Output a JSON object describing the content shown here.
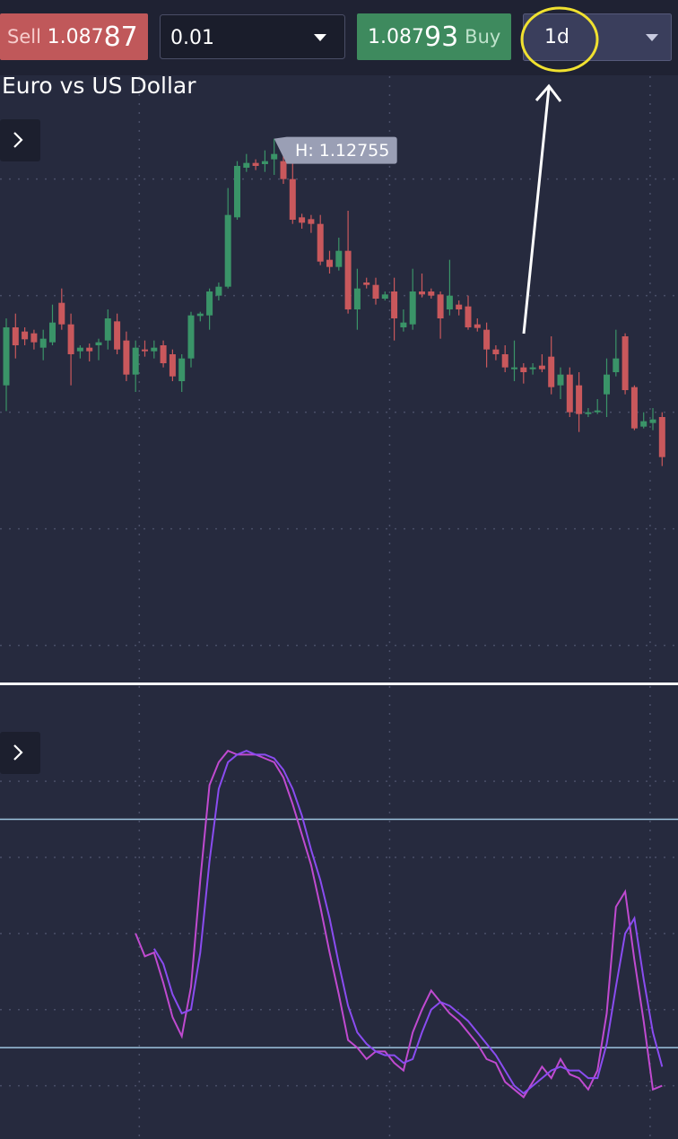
{
  "toolbar": {
    "sell": {
      "label": "Sell",
      "price": "1.087",
      "pips": "87"
    },
    "quantity": "0.01",
    "buy": {
      "price": "1.087",
      "pips": "93",
      "label": "Buy"
    },
    "timeframe": "1d"
  },
  "chart_data": [
    {
      "type": "candlestick",
      "title": "Euro vs US Dollar",
      "annotation": "H: 1.12755",
      "open": [
        1.0863,
        1.096,
        1.0953,
        1.095,
        1.0926,
        1.0935,
        1.1001,
        1.0965,
        1.092,
        1.0926,
        1.093,
        1.0938,
        1.097,
        1.0938,
        1.0881,
        1.0923,
        1.092,
        1.093,
        1.0915,
        1.087,
        1.0908,
        1.0979,
        1.098,
        1.1013,
        1.1028,
        1.1144,
        1.1227,
        1.1235,
        1.1233,
        1.1241,
        1.1238,
        1.1208,
        1.1144,
        1.1141,
        1.1133,
        1.1073,
        1.1061,
        1.1088,
        1.099,
        1.1035,
        1.1031,
        1.1008,
        1.102,
        1.096,
        1.0965,
        1.102,
        1.102,
        1.1015,
        1.099,
        1.0998,
        1.0995,
        1.0965,
        1.0956,
        1.0923,
        1.0915,
        1.089,
        1.0893,
        1.089,
        1.0896,
        1.0911,
        1.0863,
        1.0881,
        1.0863,
        1.0815,
        1.0818,
        1.0848,
        1.0885,
        1.0945,
        1.086,
        1.0794,
        1.08,
        1.081
      ],
      "high": [
        1.0975,
        1.0983,
        1.096,
        1.0956,
        1.0956,
        1.0998,
        1.1025,
        1.0983,
        1.093,
        1.0933,
        1.0941,
        1.099,
        1.0983,
        1.0953,
        1.0938,
        1.0938,
        1.0938,
        1.0938,
        1.0923,
        1.0915,
        1.0986,
        1.0986,
        1.1025,
        1.1035,
        1.1193,
        1.1238,
        1.125,
        1.1241,
        1.1256,
        1.12755,
        1.1265,
        1.1245,
        1.115,
        1.1148,
        1.1148,
        1.1088,
        1.111,
        1.1155,
        1.1058,
        1.1043,
        1.1043,
        1.102,
        1.1043,
        1.099,
        1.1058,
        1.105,
        1.1025,
        1.102,
        1.1073,
        1.1005,
        1.1013,
        1.0975,
        1.0968,
        1.093,
        1.093,
        1.0938,
        1.09,
        1.09,
        1.0915,
        1.0945,
        1.0893,
        1.0893,
        1.0885,
        1.0825,
        1.084,
        1.0908,
        1.0956,
        1.095,
        1.0863,
        1.0818,
        1.0825,
        1.0818
      ],
      "low": [
        1.082,
        1.0908,
        1.093,
        1.0923,
        1.0905,
        1.093,
        1.0956,
        1.0863,
        1.0908,
        1.0903,
        1.0905,
        1.0923,
        1.0915,
        1.087,
        1.0852,
        1.0911,
        1.0908,
        1.0893,
        1.087,
        1.0852,
        1.0893,
        1.097,
        1.0956,
        1.1005,
        1.1025,
        1.114,
        1.122,
        1.1223,
        1.122,
        1.1215,
        1.12,
        1.1133,
        1.1125,
        1.1118,
        1.1064,
        1.105,
        1.1055,
        1.0983,
        1.0956,
        1.1025,
        1.0998,
        1.1005,
        1.0938,
        1.0953,
        1.0956,
        1.101,
        1.1008,
        1.0941,
        1.098,
        1.098,
        1.0956,
        1.0953,
        1.0893,
        1.0905,
        1.0885,
        1.087,
        1.0866,
        1.0881,
        1.0885,
        1.0848,
        1.084,
        1.081,
        1.0785,
        1.081,
        1.0815,
        1.081,
        1.0878,
        1.0848,
        1.0788,
        1.0791,
        1.0788,
        1.0728
      ],
      "close": [
        1.096,
        1.093,
        1.094,
        1.0935,
        1.0941,
        1.0968,
        1.0965,
        1.0915,
        1.0926,
        1.092,
        1.0935,
        1.0975,
        1.0923,
        1.0881,
        1.0926,
        1.092,
        1.0926,
        1.09,
        1.0878,
        1.0908,
        1.098,
        1.0983,
        1.102,
        1.1028,
        1.1148,
        1.123,
        1.1235,
        1.123,
        1.1238,
        1.125,
        1.1208,
        1.114,
        1.1135,
        1.1133,
        1.107,
        1.1061,
        1.1088,
        1.099,
        1.1025,
        1.1031,
        1.1008,
        1.1015,
        1.0975,
        1.0968,
        1.102,
        1.1015,
        1.1013,
        1.0975,
        1.1013,
        1.099,
        1.096,
        1.0959,
        1.0923,
        1.0915,
        1.0893,
        1.0893,
        1.0885,
        1.0893,
        1.089,
        1.086,
        1.0881,
        1.0818,
        1.0815,
        1.0818,
        1.0821,
        1.0881,
        1.0908,
        1.0855,
        1.0791,
        1.0803,
        1.0806,
        1.0743
      ],
      "up_color": "#3a9468",
      "down_color": "#c9585c",
      "ylim": [
        1.03675,
        1.138
      ],
      "grid_y": [
        1.1208,
        1.1013,
        1.0818,
        1.0623,
        1.0428
      ],
      "grid_x": [
        14.4,
        41.5,
        69.7
      ]
    },
    {
      "type": "line",
      "series": [
        {
          "color": "#c04ad0",
          "values": [
            null,
            null,
            null,
            null,
            null,
            null,
            null,
            null,
            null,
            null,
            null,
            null,
            null,
            null,
            50,
            44,
            45,
            37,
            28,
            23,
            36,
            64,
            89,
            95,
            98,
            97,
            97,
            97,
            96,
            95,
            91,
            84,
            76,
            68,
            57,
            45,
            34,
            22,
            20,
            17,
            19,
            19,
            16,
            14,
            24,
            30,
            35,
            32,
            29,
            27,
            24,
            21,
            17,
            16,
            11,
            9,
            7,
            11,
            15,
            12,
            17,
            13,
            12,
            9,
            14,
            29,
            57,
            61,
            43,
            27,
            9,
            10
          ]
        },
        {
          "color": "#8a4cf0",
          "values": [
            null,
            null,
            null,
            null,
            null,
            null,
            null,
            null,
            null,
            null,
            null,
            null,
            null,
            null,
            null,
            null,
            46,
            42,
            34,
            29,
            30,
            45,
            69,
            88,
            95,
            97,
            98,
            97,
            97,
            96,
            93,
            88,
            81,
            72,
            64,
            54,
            42,
            31,
            24,
            21,
            19,
            18,
            18,
            16,
            17,
            24,
            30,
            32,
            31,
            29,
            27,
            24,
            21,
            18,
            14,
            10,
            8,
            10,
            12,
            14,
            15,
            14,
            14,
            12,
            12,
            21,
            36,
            50,
            54,
            38,
            24,
            15
          ]
        }
      ],
      "ylim": [
        -4,
        115
      ],
      "levels": [
        80,
        20
      ],
      "level_color": "#9ec5e0",
      "grid_y": [
        90,
        70,
        50,
        30,
        10
      ],
      "grid_x": [
        14.4,
        41.5,
        69.7
      ]
    }
  ]
}
